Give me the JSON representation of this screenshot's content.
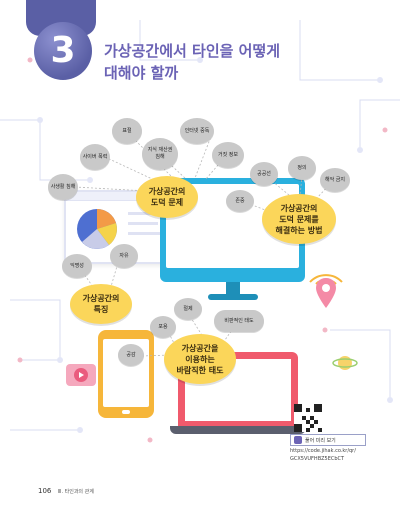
{
  "chapter": {
    "number": "3",
    "title_line1": "가상공간에서 타인을 어떻게",
    "title_line2": "대해야 할까"
  },
  "center_bubbles": {
    "problems": "가상공간의\n도덕 문제",
    "solutions": "가상공간의\n도덕 문제를\n해결하는 방법",
    "features": "가상공간의\n특징",
    "attitude": "가상공간을\n이용하는\n바람직한 태도"
  },
  "problem_items": [
    "사생활 침해",
    "사이버 폭력",
    "표절",
    "지식 재산권\n침해",
    "인터넷 중독",
    "거짓 정보"
  ],
  "solution_items": [
    "공공선",
    "정의",
    "해악 금지",
    "존중"
  ],
  "feature_items": [
    "익명성",
    "자유"
  ],
  "attitude_items": [
    "절제",
    "비판적인 태도",
    "포용",
    "공감"
  ],
  "qr": {
    "label": "풀어 미리 보기",
    "url_line1": "https://code.jihak.co.kr/qr/",
    "url_line2": "GCX5VUFHBZ5ECbCT"
  },
  "footer": {
    "page": "106",
    "chapter": "Ⅲ. 타인과의 관계"
  },
  "colors": {
    "accent": "#6b63b5",
    "bubble": "#fbd65a",
    "device": "#2ab0de",
    "laptop": "#f05a6c"
  }
}
